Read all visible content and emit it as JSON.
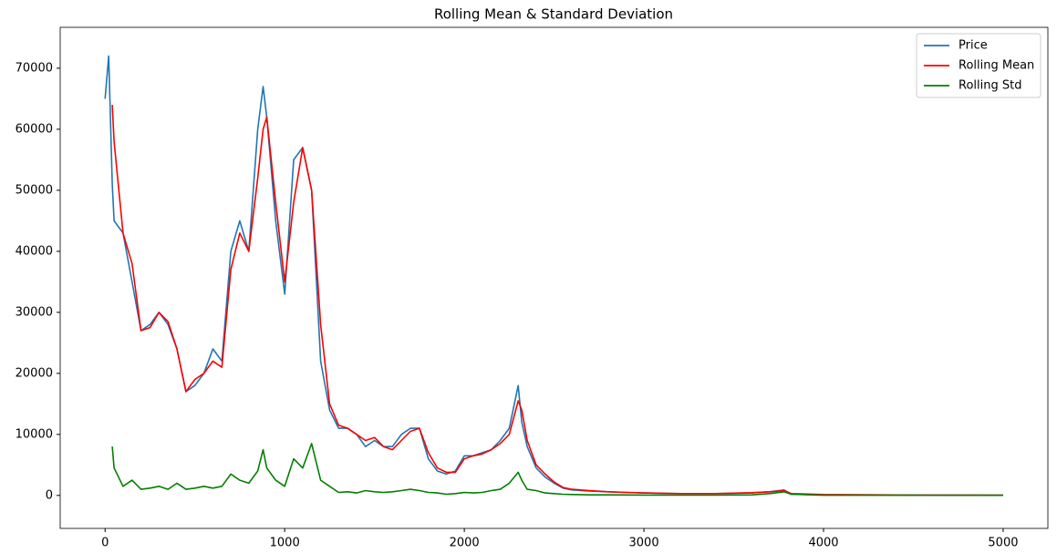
{
  "chart_data": {
    "type": "line",
    "title": "Rolling Mean & Standard Deviation",
    "x": [
      0,
      20,
      40,
      50,
      100,
      150,
      200,
      250,
      300,
      350,
      400,
      450,
      500,
      550,
      600,
      650,
      700,
      750,
      800,
      850,
      880,
      900,
      950,
      1000,
      1050,
      1100,
      1150,
      1200,
      1250,
      1300,
      1350,
      1400,
      1450,
      1500,
      1550,
      1600,
      1650,
      1700,
      1750,
      1800,
      1850,
      1900,
      1950,
      2000,
      2050,
      2100,
      2150,
      2200,
      2250,
      2300,
      2320,
      2350,
      2400,
      2450,
      2500,
      2550,
      2600,
      2700,
      2800,
      2900,
      3000,
      3200,
      3400,
      3600,
      3700,
      3780,
      3820,
      4000,
      4500,
      5000
    ],
    "series": [
      {
        "name": "Price",
        "color": "#1f77b4",
        "values": [
          65000,
          72000,
          51000,
          45000,
          43000,
          35000,
          27000,
          28000,
          30000,
          28000,
          24000,
          17000,
          18000,
          20000,
          24000,
          22000,
          40000,
          45000,
          40000,
          60000,
          67000,
          62000,
          45000,
          33000,
          55000,
          57000,
          50000,
          22000,
          14000,
          11000,
          11000,
          10000,
          8000,
          9000,
          8000,
          8000,
          10000,
          11000,
          11000,
          6000,
          4000,
          3500,
          4000,
          6500,
          6500,
          7000,
          7500,
          9000,
          11000,
          18000,
          12000,
          8000,
          4500,
          3000,
          2000,
          1200,
          900,
          700,
          600,
          500,
          400,
          300,
          300,
          400,
          600,
          900,
          200,
          100,
          50,
          50
        ]
      },
      {
        "name": "Rolling Mean",
        "color": "#ff0000",
        "values": [
          null,
          null,
          64000,
          58000,
          43000,
          38000,
          27000,
          27500,
          30000,
          28500,
          24000,
          17000,
          19000,
          20000,
          22000,
          21000,
          37000,
          43000,
          40000,
          52000,
          60000,
          62000,
          48000,
          35000,
          48000,
          57000,
          50000,
          28000,
          15000,
          11500,
          11000,
          10000,
          9000,
          9500,
          8000,
          7500,
          9000,
          10500,
          11000,
          7000,
          4500,
          3800,
          3800,
          6000,
          6500,
          6800,
          7500,
          8500,
          10000,
          15500,
          14000,
          9000,
          5000,
          3500,
          2200,
          1300,
          1000,
          800,
          600,
          500,
          400,
          300,
          300,
          450,
          600,
          800,
          300,
          150,
          60,
          50
        ]
      },
      {
        "name": "Rolling Std",
        "color": "#008000",
        "values": [
          null,
          null,
          8000,
          4500,
          1500,
          2500,
          1000,
          1200,
          1500,
          1000,
          2000,
          1000,
          1200,
          1500,
          1200,
          1500,
          3500,
          2500,
          2000,
          4000,
          7500,
          4500,
          2500,
          1500,
          6000,
          4500,
          8500,
          2500,
          1500,
          500,
          600,
          400,
          800,
          600,
          500,
          600,
          800,
          1000,
          800,
          500,
          400,
          200,
          300,
          500,
          400,
          500,
          800,
          1000,
          2000,
          3800,
          2500,
          1000,
          800,
          400,
          300,
          200,
          150,
          100,
          100,
          80,
          60,
          50,
          50,
          100,
          300,
          600,
          200,
          40,
          30,
          20
        ]
      }
    ],
    "xlim": [
      -250,
      5249
    ],
    "ylim": [
      -5400,
      76700
    ],
    "xticks": [
      0,
      1000,
      2000,
      3000,
      4000,
      5000
    ],
    "yticks": [
      0,
      10000,
      20000,
      30000,
      40000,
      50000,
      60000,
      70000
    ],
    "legend": "upper right",
    "grid": false
  }
}
